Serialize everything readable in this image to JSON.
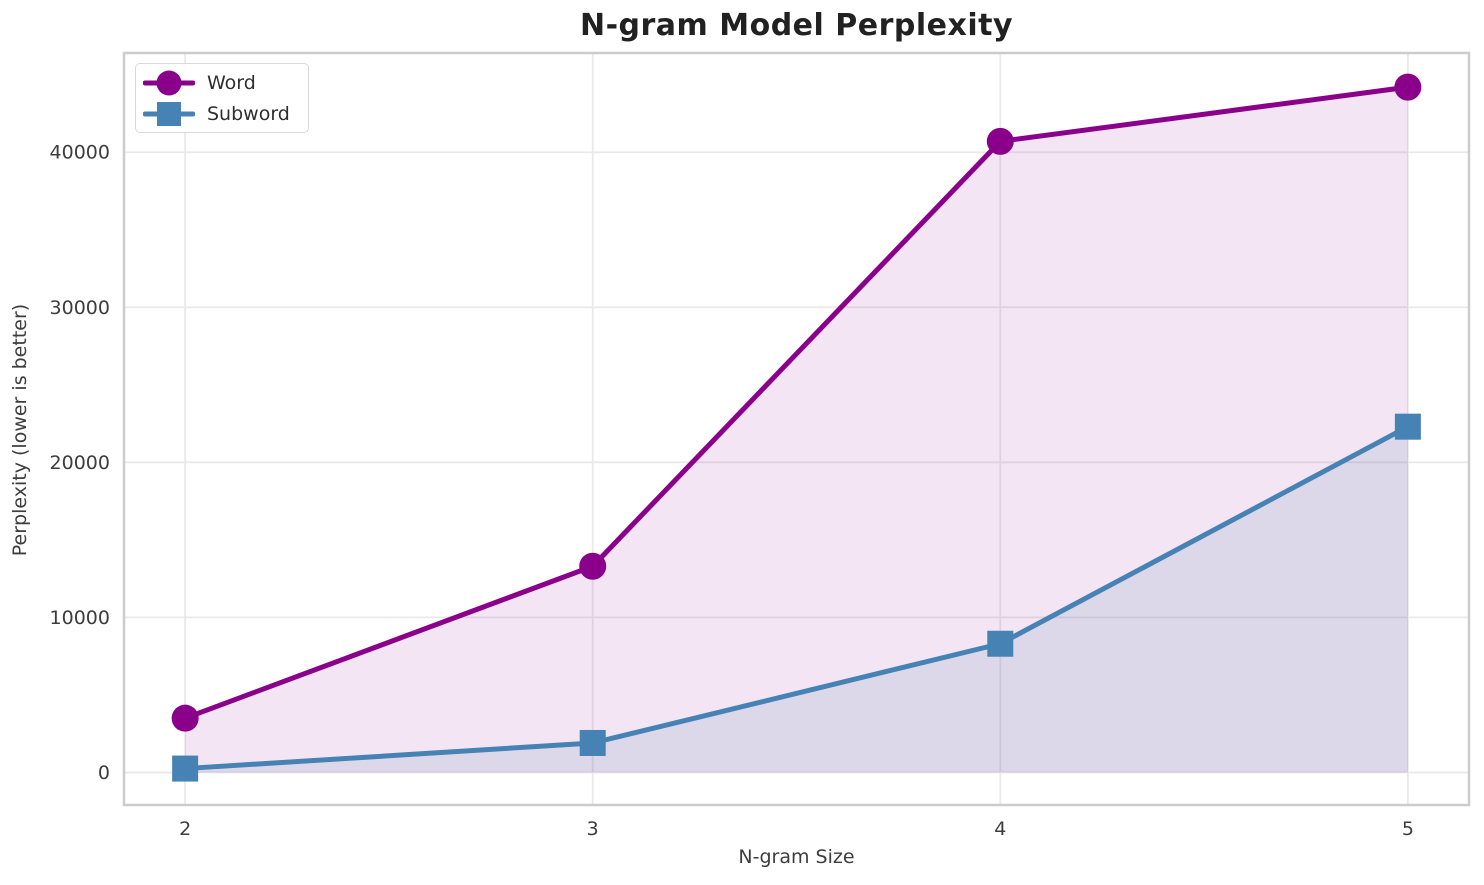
{
  "chart_data": {
    "type": "line",
    "title": "N-gram Model Perplexity",
    "xlabel": "N-gram Size",
    "ylabel": "Perplexity (lower is better)",
    "x": [
      2,
      3,
      4,
      5
    ],
    "series": [
      {
        "name": "Word",
        "values": [
          3500,
          13300,
          40700,
          44200
        ],
        "color": "#8B008B",
        "marker": "circle",
        "fill_opacity": 0.1
      },
      {
        "name": "Subword",
        "values": [
          250,
          1900,
          8300,
          22300
        ],
        "color": "#4682B4",
        "marker": "square",
        "fill_opacity": 0.13
      }
    ],
    "xticks": [
      2,
      3,
      4,
      5
    ],
    "yticks": [
      0,
      10000,
      20000,
      30000,
      40000
    ],
    "xlim": [
      1.85,
      5.15
    ],
    "ylim": [
      -2100,
      46400
    ],
    "grid": true,
    "area_fill_to": 0,
    "legend_position": "upper left"
  },
  "style_colors": {
    "grid": "#e9e9e9",
    "spine": "#cccccc",
    "tick_label": "#3d3d3d",
    "background": "#ffffff"
  }
}
